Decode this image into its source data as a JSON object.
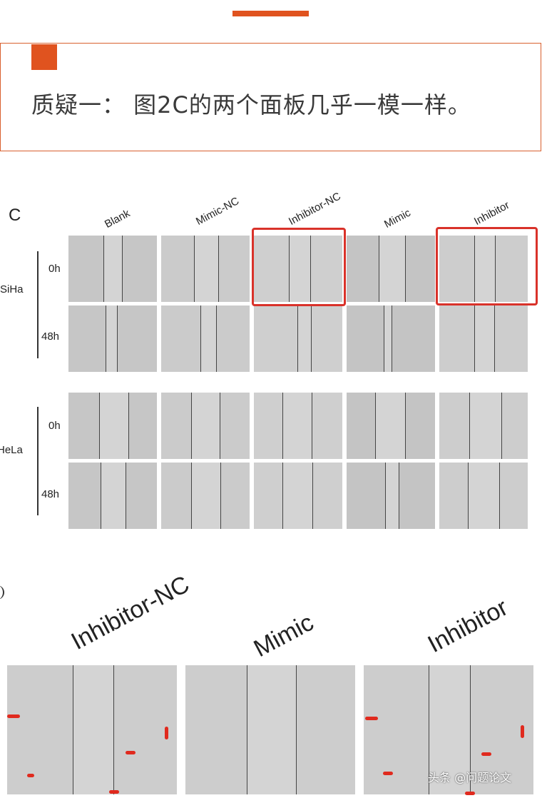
{
  "header": {
    "question": "质疑一： 图2C的两个面板几乎一模一样。"
  },
  "figure_c": {
    "panel_letter": "C",
    "columns": [
      "Blank",
      "Mimic-NC",
      "Inhibitor-NC",
      "Mimic",
      "Inhibitor"
    ],
    "cell_lines": [
      {
        "name": "SiHa",
        "times": [
          "0h",
          "48h"
        ]
      },
      {
        "name": "HeLa",
        "times": [
          "0h",
          "48h"
        ]
      }
    ]
  },
  "zoom_figure": {
    "columns": [
      "Inhibitor-NC",
      "Mimic",
      "Inhibitor"
    ]
  },
  "watermark": "头条 @问题论文",
  "colors": {
    "accent": "#e0531f",
    "highlight": "#d9322a"
  }
}
